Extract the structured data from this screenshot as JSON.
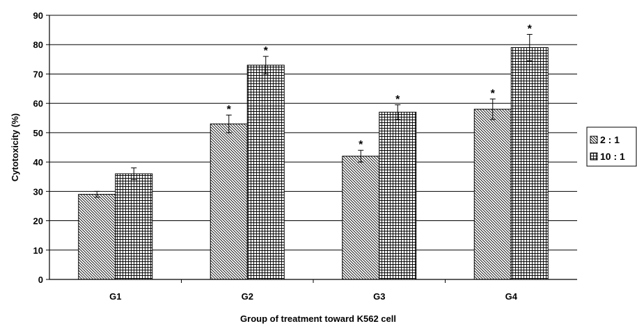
{
  "chart_data": {
    "type": "bar",
    "title": "",
    "xlabel": "Group of treatment toward K562 cell",
    "ylabel": "Cytotoxicity (%)",
    "ylim": [
      0,
      90
    ],
    "yticks": [
      0,
      10,
      20,
      30,
      40,
      50,
      60,
      70,
      80,
      90
    ],
    "grid": true,
    "legend_position": "right",
    "categories": [
      "G1",
      "G2",
      "G3",
      "G4"
    ],
    "series": [
      {
        "name": "2 : 1",
        "pattern": "diagonal-hatch",
        "values": [
          29,
          53,
          42,
          58
        ],
        "errors": [
          1,
          3,
          2,
          3.5
        ],
        "significance": [
          "",
          "*",
          "*",
          "*"
        ]
      },
      {
        "name": "10 : 1",
        "pattern": "grid-hatch",
        "values": [
          36,
          73,
          57,
          79
        ],
        "errors": [
          2,
          3,
          2.5,
          4.5
        ],
        "significance": [
          "",
          "*",
          "*",
          "*"
        ]
      }
    ],
    "colors": {
      "bar_fill": "#ffffff",
      "pattern_stroke": "#000000",
      "gridline": "#000000",
      "axis": "#000000"
    }
  }
}
